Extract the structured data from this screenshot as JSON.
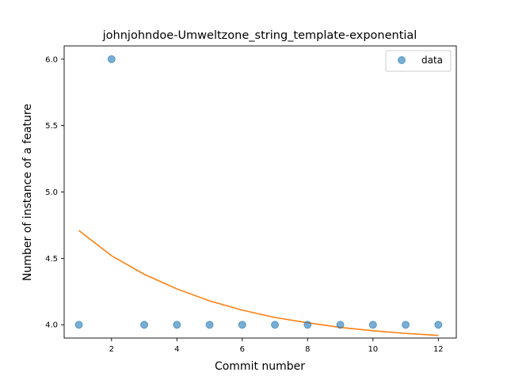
{
  "chart_data": {
    "type": "scatter",
    "title": "johnjohndoe-Umweltzone_string_template-exponential",
    "xlabel": "Commit number",
    "ylabel": "Number of instance of a feature",
    "xlim": [
      0.55,
      12.55
    ],
    "ylim": [
      3.9,
      6.1
    ],
    "x_ticks": [
      2,
      4,
      6,
      8,
      10,
      12
    ],
    "y_ticks": [
      4.0,
      4.5,
      5.0,
      5.5,
      6.0
    ],
    "grid": false,
    "legend_position": "top-right",
    "series": [
      {
        "name": "data",
        "kind": "scatter",
        "color": "#1f77b4",
        "x": [
          1,
          2,
          3,
          4,
          5,
          6,
          7,
          8,
          9,
          10,
          11,
          12
        ],
        "y": [
          4,
          6,
          4,
          4,
          4,
          4,
          4,
          4,
          4,
          4,
          4,
          4
        ]
      },
      {
        "kind": "line",
        "color": "#ff7f0e",
        "x": [
          1,
          2,
          3,
          4,
          5,
          6,
          7,
          8,
          9,
          10,
          11,
          12
        ],
        "y": [
          4.71,
          4.52,
          4.38,
          4.27,
          4.18,
          4.11,
          4.055,
          4.015,
          3.98,
          3.955,
          3.935,
          3.92
        ]
      }
    ]
  }
}
